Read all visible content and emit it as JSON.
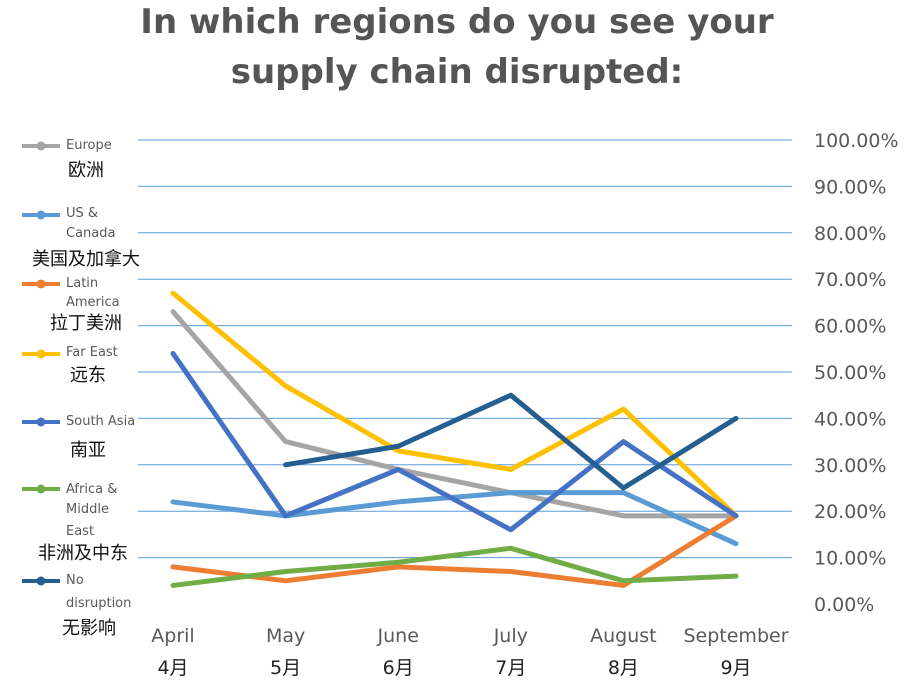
{
  "chart_data": {
    "type": "line",
    "title_lines": [
      "In which regions do you see your",
      "supply chain disrupted:"
    ],
    "categories": [
      "April",
      "May",
      "June",
      "July",
      "August",
      "September"
    ],
    "categories_cn": [
      "4月",
      "5月",
      "6月",
      "7月",
      "8月",
      "9月"
    ],
    "y_ticks": [
      "0.00%",
      "10.00%",
      "20.00%",
      "30.00%",
      "40.00%",
      "50.00%",
      "60.00%",
      "70.00%",
      "80.00%",
      "90.00%",
      "100.00%"
    ],
    "ylim": [
      0,
      100
    ],
    "y_axis_side": "right",
    "grid": true,
    "legend_position": "left",
    "series": [
      {
        "name": "Europe",
        "name_cn": "欧洲",
        "color": "#a5a5a5",
        "values": [
          63,
          35,
          29,
          24,
          19,
          19
        ]
      },
      {
        "name": "US & Canada",
        "name_cn": "美国及加拿大",
        "color": "#5b9bd5",
        "values": [
          22,
          19,
          22,
          24,
          24,
          13
        ]
      },
      {
        "name": "Latin America",
        "name_cn": "拉丁美洲",
        "color": "#ed7d31",
        "values": [
          8,
          5,
          8,
          7,
          4,
          19
        ]
      },
      {
        "name": "Far East",
        "name_cn": "远东",
        "color": "#ffc000",
        "values": [
          67,
          47,
          33,
          29,
          42,
          19
        ]
      },
      {
        "name": "South Asia",
        "name_cn": "南亚",
        "color": "#4472c4",
        "values": [
          54,
          19,
          29,
          16,
          35,
          19
        ]
      },
      {
        "name": "Africa & Middle East",
        "name_cn": "非洲及中东",
        "color": "#70ad47",
        "values": [
          4,
          7,
          9,
          12,
          5,
          6
        ]
      },
      {
        "name": "No disruption",
        "name_cn": "无影响",
        "color": "#255e91",
        "values": [
          null,
          30,
          34,
          45,
          25,
          40
        ]
      }
    ]
  }
}
